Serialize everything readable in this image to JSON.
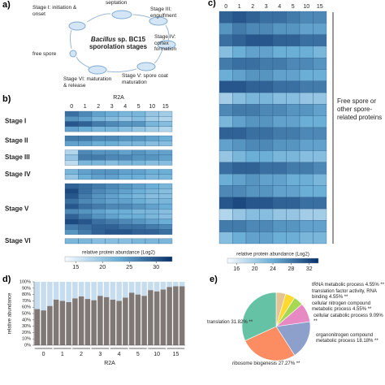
{
  "panel_a": {
    "label": "a)",
    "septation": "septation",
    "stage1": "Stage I: initiation & onset",
    "stage3": "Stage III: engulfment",
    "stage4": "Stage IV: cortex formation",
    "stage5": "Stage V: spore coat maturation",
    "stage6": "Stage VI: maturation & release",
    "free": "free spore",
    "title_italic": "Bacillus",
    "title_rest": "sp. BC15 sporolation stages"
  },
  "chart_data": [
    {
      "type": "heatmap",
      "panel_label": "b)",
      "xlabel": "R2A",
      "columns": [
        0,
        1,
        2,
        3,
        4,
        5,
        10,
        15
      ],
      "colorscale": [
        "#f7fbff",
        "#6baed6",
        "#08306b"
      ],
      "colorbar_lim": [
        13,
        33
      ],
      "colorbar_ticks": [
        15,
        20,
        25,
        30
      ],
      "colorbar_label": "relative protein abundance (Log2)",
      "groups": [
        {
          "name": "Stage I",
          "values": [
            [
              28,
              26,
              24,
              23,
              22,
              22,
              20,
              19
            ],
            [
              25,
              24,
              22,
              21,
              20,
              21,
              19,
              18
            ],
            [
              30,
              29,
              27,
              26,
              25,
              25,
              22,
              21
            ],
            [
              24,
              23,
              22,
              22,
              21,
              20,
              19,
              18
            ]
          ]
        },
        {
          "name": "Stage II",
          "values": [
            [
              27,
              27,
              26,
              26,
              25,
              25,
              24,
              23
            ],
            [
              24,
              24,
              23,
              23,
              22,
              22,
              21,
              21
            ]
          ]
        },
        {
          "name": "Stage III",
          "values": [
            [
              18,
              26,
              25,
              25,
              24,
              25,
              24,
              24
            ],
            [
              20,
              27,
              27,
              26,
              26,
              25,
              25,
              24
            ],
            [
              17,
              22,
              22,
              21,
              22,
              22,
              21,
              21
            ]
          ]
        },
        {
          "name": "Stage IV",
          "values": [
            [
              22,
              24,
              25,
              25,
              24,
              24,
              23,
              23
            ],
            [
              20,
              23,
              24,
              24,
              23,
              23,
              22,
              22
            ]
          ]
        },
        {
          "name": "Stage V",
          "values": [
            [
              29,
              28,
              27,
              26,
              25,
              24,
              23,
              22
            ],
            [
              31,
              28,
              26,
              25,
              24,
              23,
              22,
              21
            ],
            [
              30,
              27,
              25,
              24,
              23,
              22,
              21,
              21
            ],
            [
              28,
              26,
              25,
              24,
              24,
              23,
              22,
              22
            ],
            [
              30,
              28,
              27,
              26,
              26,
              25,
              24,
              23
            ],
            [
              26,
              25,
              24,
              23,
              23,
              22,
              22,
              21
            ],
            [
              29,
              27,
              25,
              24,
              23,
              23,
              22,
              21
            ],
            [
              31,
              30,
              28,
              27,
              26,
              25,
              24,
              23
            ],
            [
              27,
              28,
              29,
              29,
              28,
              28,
              27,
              26
            ],
            [
              25,
              27,
              29,
              30,
              30,
              29,
              29,
              28
            ]
          ]
        },
        {
          "name": "Stage VI",
          "values": [
            [
              22,
              22,
              21,
              21,
              21,
              22,
              22,
              22
            ]
          ]
        }
      ]
    },
    {
      "type": "heatmap",
      "panel_label": "c)",
      "columns": [
        0,
        1,
        2,
        3,
        4,
        5,
        10,
        15
      ],
      "colorscale": [
        "#f7fbff",
        "#6baed6",
        "#08306b"
      ],
      "colorbar_lim": [
        14,
        34
      ],
      "colorbar_ticks": [
        16,
        20,
        24,
        28,
        32
      ],
      "colorbar_label": "relative protein abundance (Log2)",
      "side_label": "Free spore or other spore-related proteins",
      "values": [
        [
          30,
          31,
          30,
          29,
          29,
          28,
          27,
          27
        ],
        [
          26,
          28,
          27,
          27,
          26,
          26,
          25,
          25
        ],
        [
          29,
          30,
          31,
          31,
          30,
          30,
          29,
          29
        ],
        [
          22,
          24,
          25,
          25,
          24,
          24,
          24,
          23
        ],
        [
          28,
          29,
          29,
          28,
          28,
          27,
          27,
          26
        ],
        [
          24,
          25,
          26,
          26,
          25,
          25,
          24,
          24
        ],
        [
          31,
          31,
          30,
          30,
          29,
          29,
          28,
          28
        ],
        [
          20,
          22,
          23,
          23,
          22,
          22,
          21,
          21
        ],
        [
          27,
          28,
          28,
          27,
          27,
          26,
          26,
          25
        ],
        [
          23,
          25,
          26,
          26,
          25,
          25,
          24,
          24
        ],
        [
          30,
          30,
          29,
          29,
          28,
          28,
          27,
          27
        ],
        [
          25,
          26,
          27,
          27,
          26,
          26,
          25,
          25
        ],
        [
          21,
          23,
          24,
          24,
          23,
          23,
          22,
          22
        ],
        [
          29,
          30,
          30,
          29,
          29,
          28,
          28,
          27
        ],
        [
          24,
          25,
          26,
          25,
          25,
          24,
          24,
          23
        ],
        [
          27,
          27,
          26,
          26,
          25,
          25,
          24,
          24
        ],
        [
          31,
          32,
          31,
          31,
          30,
          30,
          29,
          29
        ],
        [
          19,
          21,
          22,
          22,
          21,
          21,
          20,
          20
        ],
        [
          28,
          28,
          27,
          27,
          26,
          26,
          25,
          25
        ],
        [
          22,
          24,
          25,
          25,
          24,
          24,
          23,
          23
        ]
      ]
    },
    {
      "type": "stacked_bar",
      "panel_label": "d)",
      "xlabel": "R2A",
      "ylabel": "relative abundance",
      "categories": [
        null,
        "0",
        null,
        null,
        "1",
        null,
        null,
        "2",
        null,
        null,
        "3",
        null,
        null,
        "4",
        null,
        null,
        "5",
        null,
        null,
        "10",
        null,
        null,
        "15",
        null
      ],
      "series": [
        {
          "color": "#7f7874",
          "values": [
            57,
            55,
            62,
            72,
            70,
            68,
            74,
            77,
            73,
            71,
            78,
            76,
            72,
            70,
            75,
            83,
            80,
            78,
            87,
            85,
            88,
            92,
            93,
            93
          ]
        },
        {
          "color": "#c6dcef",
          "values": [
            43,
            45,
            38,
            28,
            30,
            32,
            26,
            23,
            27,
            29,
            22,
            24,
            28,
            30,
            25,
            17,
            20,
            22,
            13,
            15,
            12,
            8,
            7,
            7
          ]
        }
      ],
      "ylim": [
        0,
        100
      ],
      "yticks": [
        {
          "value": 0,
          "label": "0%"
        },
        {
          "value": 10,
          "label": "10%"
        },
        {
          "value": 20,
          "label": "20%"
        },
        {
          "value": 30,
          "label": "30%"
        },
        {
          "value": 40,
          "label": "40%"
        },
        {
          "value": 50,
          "label": "50%"
        },
        {
          "value": 60,
          "label": "60%"
        },
        {
          "value": 70,
          "label": "70%"
        },
        {
          "value": 80,
          "label": "80%"
        },
        {
          "value": 90,
          "label": "90%"
        },
        {
          "value": 100,
          "label": "100%"
        }
      ]
    },
    {
      "type": "pie",
      "panel_label": "e)",
      "labels": [
        "tRNA metabolic process 4.55% **",
        "translation factor activity, RNA binding 4.55% **",
        "cellular nitrogen compound metabolic process 4.55% **",
        "cellular catabolic process 9.09% **",
        "organonitrogen compound metabolic process 18.18% **",
        "ribosome biogenesis 27.27% **",
        "translation 31.82% **"
      ],
      "values": [
        4.55,
        4.55,
        4.55,
        9.09,
        18.18,
        27.27,
        31.82
      ],
      "colors": [
        "#e5c494",
        "#ffd92f",
        "#a6d854",
        "#e78ac3",
        "#8da0cb",
        "#fc8d62",
        "#66c2a5"
      ]
    }
  ]
}
